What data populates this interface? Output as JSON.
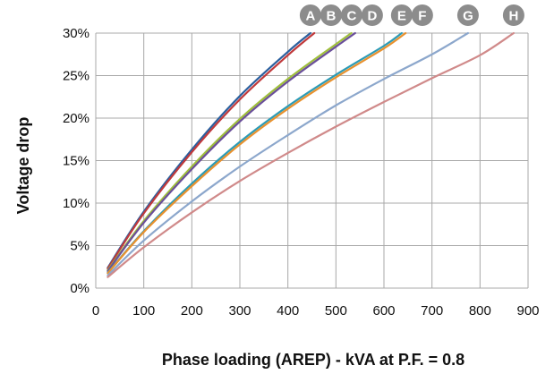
{
  "chart_data": {
    "type": "line",
    "title": "",
    "xlabel": "Phase loading (AREP) - kVA at P.F. = 0.8",
    "ylabel": "Voltage drop",
    "xlim": [
      0,
      900
    ],
    "ylim": [
      0,
      30
    ],
    "x_ticks": [
      "0",
      "100",
      "200",
      "300",
      "400",
      "500",
      "600",
      "700",
      "800",
      "900"
    ],
    "y_ticks": [
      "0%",
      "5%",
      "10%",
      "15%",
      "20%",
      "25%",
      "30%"
    ],
    "grid": true,
    "legend": "curve letters at top",
    "series": [
      {
        "name": "A",
        "color": "#2a5f9e",
        "x": [
          25,
          100,
          200,
          300,
          400,
          447
        ],
        "y": [
          2.4,
          9.0,
          16.3,
          22.6,
          27.8,
          30.0
        ]
      },
      {
        "name": "B",
        "color": "#c0393b",
        "x": [
          25,
          100,
          200,
          300,
          400,
          455
        ],
        "y": [
          2.3,
          8.8,
          16.0,
          22.2,
          27.4,
          30.0
        ]
      },
      {
        "name": "C",
        "color": "#9fbf3b",
        "x": [
          25,
          100,
          200,
          300,
          400,
          500,
          532
        ],
        "y": [
          2.1,
          7.9,
          14.3,
          19.9,
          24.6,
          28.7,
          30.0
        ]
      },
      {
        "name": "D",
        "color": "#6a4f9a",
        "x": [
          25,
          100,
          200,
          300,
          400,
          500,
          540
        ],
        "y": [
          2.0,
          7.7,
          14.0,
          19.6,
          24.3,
          28.4,
          30.0
        ]
      },
      {
        "name": "E",
        "color": "#2b9bb6",
        "x": [
          25,
          100,
          200,
          300,
          400,
          500,
          600,
          637
        ],
        "y": [
          1.8,
          6.7,
          12.3,
          17.2,
          21.4,
          25.1,
          28.5,
          30.0
        ]
      },
      {
        "name": "F",
        "color": "#e8912e",
        "x": [
          25,
          100,
          200,
          300,
          400,
          500,
          600,
          645
        ],
        "y": [
          1.75,
          6.6,
          12.0,
          16.9,
          21.1,
          24.8,
          28.2,
          30.0
        ]
      },
      {
        "name": "G",
        "color": "#8ca7cc",
        "x": [
          25,
          100,
          200,
          300,
          400,
          500,
          600,
          700,
          775
        ],
        "y": [
          1.5,
          5.6,
          10.2,
          14.3,
          18.0,
          21.5,
          24.6,
          27.5,
          30.0
        ]
      },
      {
        "name": "H",
        "color": "#d08a8a",
        "x": [
          25,
          100,
          200,
          300,
          400,
          500,
          600,
          700,
          800,
          870
        ],
        "y": [
          1.3,
          4.8,
          8.9,
          12.6,
          15.9,
          19.0,
          21.9,
          24.7,
          27.4,
          30.0
        ]
      }
    ]
  }
}
